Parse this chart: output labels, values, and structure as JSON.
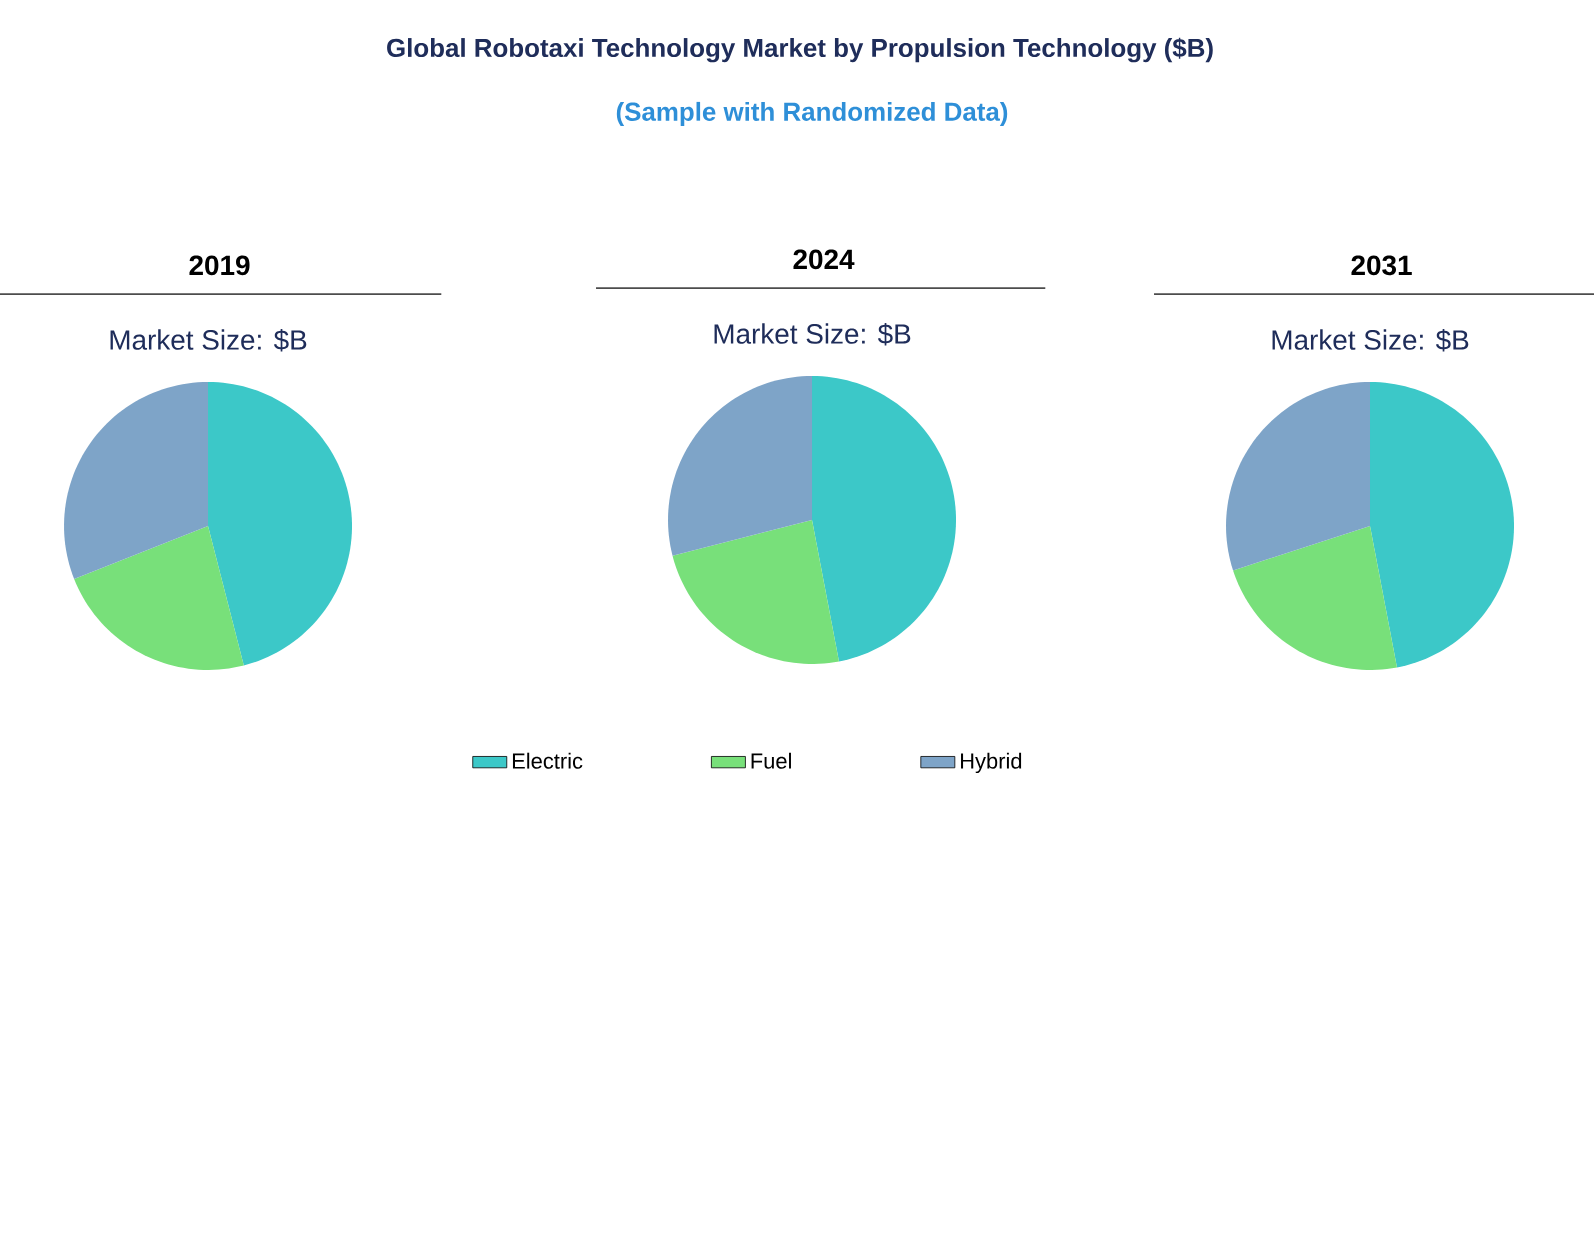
{
  "chart_data": [
    {
      "type": "pie",
      "title": "2019",
      "subtitle": "Market Size: $B",
      "annotations": [
        "Global Robotaxi Technology Market by Propulsion Technology ($B)",
        "(Sample with Randomized Data)"
      ],
      "categories": [
        "Electric",
        "Fuel",
        "Hybrid"
      ],
      "values": [
        46,
        23,
        31
      ],
      "colors": [
        "#3cc8c8",
        "#78e07a",
        "#7ea4c8"
      ],
      "legend": "bottom"
    },
    {
      "type": "pie",
      "title": "2024",
      "subtitle": "Market Size: $B",
      "values": [
        47,
        24,
        29
      ],
      "colors": [
        "#3cc8c8",
        "#78e07a",
        "#7ea4c8"
      ]
    },
    {
      "type": "pie",
      "title": "2031",
      "subtitle": "Market Size: $B",
      "values": [
        47,
        23,
        30
      ],
      "colors": [
        "#3cc8c8",
        "#78e07a",
        "#7ea4c8"
      ]
    }
  ]
}
